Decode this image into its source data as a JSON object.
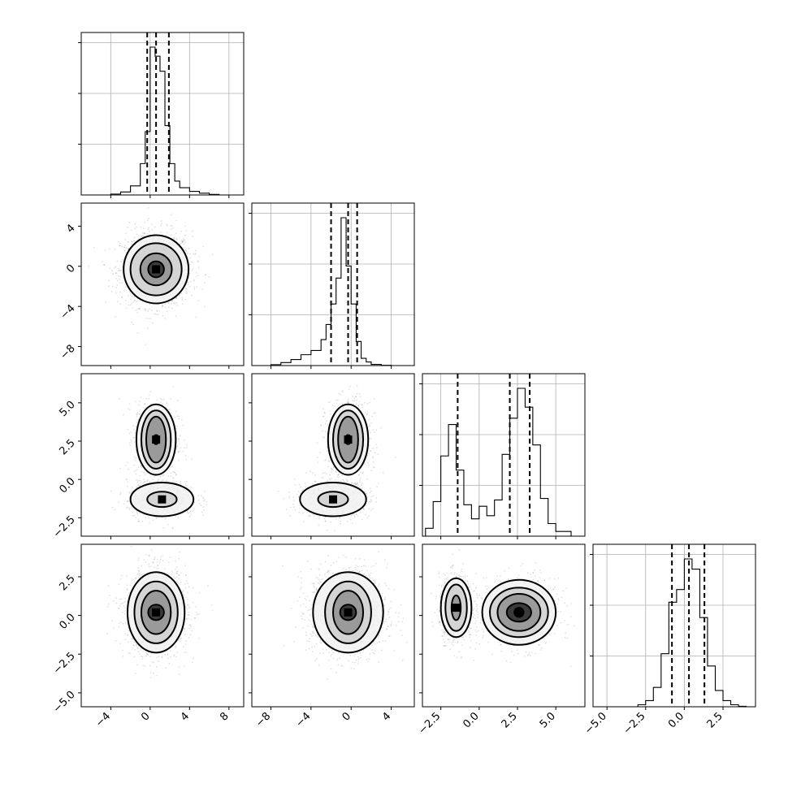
{
  "chart_data": {
    "type": "corner",
    "title": "",
    "parameters": 4,
    "quantiles": [
      0.16,
      0.5,
      0.84
    ],
    "grid": true,
    "x_ticks": [
      [
        "−4",
        "0",
        "4",
        "8"
      ],
      [
        "−8",
        "−4",
        "0",
        "4"
      ],
      [
        "−2.5",
        "0.0",
        "2.5",
        "5.0"
      ],
      [
        "−5.0",
        "−2.5",
        "0.0",
        "2.5"
      ]
    ],
    "x_tick_values": [
      [
        -4,
        0,
        4,
        8
      ],
      [
        -8,
        -4,
        0,
        4
      ],
      [
        -2.5,
        0.0,
        2.5,
        5.0
      ],
      [
        -5.0,
        -2.5,
        0.0,
        2.5
      ]
    ],
    "y_ticks": [
      [],
      [
        "4",
        "0",
        "−4",
        "−8"
      ],
      [
        "5.0",
        "2.5",
        "0.0",
        "−2.5"
      ],
      [
        "2.5",
        "0.0",
        "−2.5",
        "−5.0"
      ]
    ],
    "y_tick_values": [
      [],
      [
        4,
        0,
        -4,
        -8
      ],
      [
        5.0,
        2.5,
        0.0,
        -2.5
      ],
      [
        2.5,
        0.0,
        -2.5,
        -5.0
      ]
    ],
    "ranges": [
      [
        -7.0,
        9.5
      ],
      [
        -9.9,
        6.3
      ],
      [
        -3.7,
        6.9
      ],
      [
        -5.9,
        4.6
      ]
    ],
    "histograms": [
      {
        "parameter": 1,
        "bin_edges": [
          -5.0,
          -4.0,
          -3.0,
          -2.0,
          -1.0,
          -0.5,
          0.0,
          0.5,
          1.0,
          1.5,
          2.0,
          2.5,
          3.0,
          4.0,
          5.0,
          6.0,
          7.0
        ],
        "counts": [
          0,
          15,
          50,
          150,
          520,
          1050,
          2450,
          2300,
          2050,
          1150,
          520,
          230,
          120,
          60,
          30,
          10
        ],
        "quantile_values": [
          -0.3,
          0.6,
          1.9
        ]
      },
      {
        "parameter": 2,
        "bin_edges": [
          -8.0,
          -7.0,
          -6.0,
          -5.0,
          -4.0,
          -3.0,
          -2.5,
          -2.0,
          -1.5,
          -1.0,
          -0.5,
          0.0,
          0.5,
          1.0,
          1.5,
          2.0,
          3.0,
          4.0,
          5.0
        ],
        "counts": [
          15,
          50,
          100,
          180,
          250,
          430,
          680,
          1020,
          1450,
          2450,
          1650,
          1020,
          400,
          120,
          60,
          20,
          5,
          0
        ],
        "quantile_values": [
          -2.0,
          -0.3,
          0.6
        ]
      },
      {
        "parameter": 3,
        "bin_edges": [
          -3.5,
          -3.0,
          -2.5,
          -2.0,
          -1.5,
          -1.0,
          -0.5,
          0.0,
          0.5,
          1.0,
          1.5,
          2.0,
          2.5,
          3.0,
          3.5,
          4.0,
          4.5,
          5.0,
          6.0
        ],
        "counts": [
          25,
          110,
          255,
          355,
          210,
          100,
          55,
          95,
          65,
          115,
          260,
          375,
          470,
          410,
          290,
          120,
          40,
          15
        ],
        "quantile_values": [
          -1.4,
          2.0,
          3.3
        ]
      },
      {
        "parameter": 4,
        "bin_edges": [
          -3.0,
          -2.5,
          -2.0,
          -1.5,
          -1.0,
          -0.5,
          0.0,
          0.5,
          1.0,
          1.5,
          2.0,
          2.5,
          3.0,
          3.5,
          4.0
        ],
        "counts": [
          40,
          120,
          380,
          1040,
          2050,
          2300,
          2900,
          2700,
          1750,
          800,
          320,
          120,
          40,
          10
        ],
        "quantile_values": [
          -0.8,
          0.3,
          1.3
        ]
      }
    ],
    "pairs": [
      {
        "x_param": 1,
        "y_param": 2,
        "modes": [
          {
            "center": [
              0.6,
              -0.3
            ],
            "contour_radii": [
              [
                0.8,
                0.8
              ],
              [
                1.6,
                1.6
              ],
              [
                2.6,
                2.6
              ],
              [
                3.3,
                3.4
              ]
            ]
          }
        ]
      },
      {
        "x_param": 1,
        "y_param": 3,
        "modes": [
          {
            "center": [
              0.6,
              2.6
            ],
            "contour_radii": [
              [
                0.3,
                0.3
              ],
              [
                1.0,
                1.5
              ],
              [
                1.5,
                1.9
              ],
              [
                2.0,
                2.3
              ]
            ]
          },
          {
            "center": [
              1.2,
              -1.3
            ],
            "contour_radii": [
              [
                1.5,
                0.5
              ],
              [
                3.2,
                1.1
              ]
            ]
          }
        ]
      },
      {
        "x_param": 2,
        "y_param": 3,
        "modes": [
          {
            "center": [
              -0.3,
              2.6
            ],
            "contour_radii": [
              [
                0.3,
                0.3
              ],
              [
                1.0,
                1.5
              ],
              [
                1.5,
                1.9
              ],
              [
                2.0,
                2.3
              ]
            ]
          },
          {
            "center": [
              -1.8,
              -1.3
            ],
            "contour_radii": [
              [
                1.5,
                0.5
              ],
              [
                3.3,
                1.1
              ]
            ]
          }
        ]
      },
      {
        "x_param": 1,
        "y_param": 4,
        "modes": [
          {
            "center": [
              0.6,
              0.2
            ],
            "contour_radii": [
              [
                0.8,
                0.5
              ],
              [
                1.5,
                1.4
              ],
              [
                2.2,
                2.0
              ],
              [
                2.9,
                2.6
              ]
            ]
          }
        ]
      },
      {
        "x_param": 2,
        "y_param": 4,
        "modes": [
          {
            "center": [
              -0.3,
              0.2
            ],
            "contour_radii": [
              [
                0.8,
                0.5
              ],
              [
                1.5,
                1.4
              ],
              [
                2.3,
                2.0
              ],
              [
                3.5,
                2.6
              ]
            ]
          }
        ]
      },
      {
        "x_param": 3,
        "y_param": 4,
        "modes": [
          {
            "center": [
              -1.5,
              0.5
            ],
            "contour_radii": [
              [
                0.3,
                0.8
              ],
              [
                0.7,
                1.5
              ],
              [
                1.0,
                1.9
              ]
            ]
          },
          {
            "center": [
              2.6,
              0.2
            ],
            "contour_radii": [
              [
                0.3,
                0.3
              ],
              [
                0.8,
                0.6
              ],
              [
                1.4,
                1.2
              ],
              [
                1.9,
                1.6
              ],
              [
                2.4,
                2.1
              ]
            ]
          }
        ]
      }
    ]
  }
}
